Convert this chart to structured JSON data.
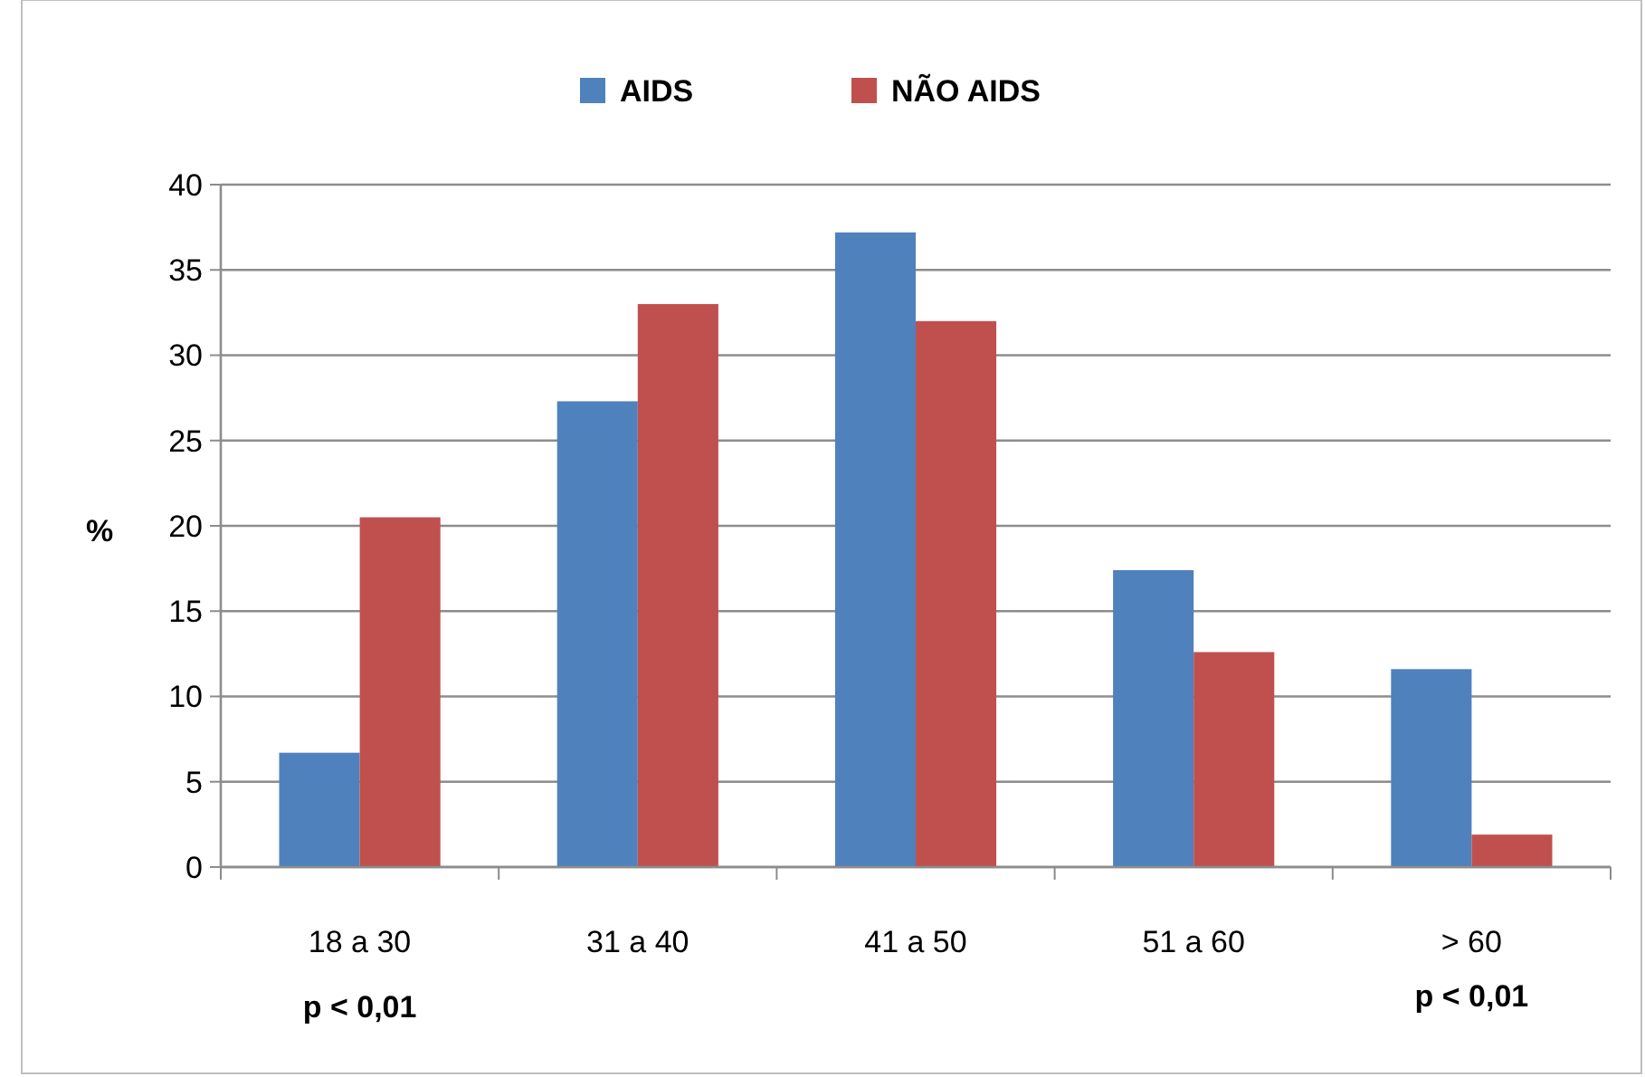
{
  "chart_data": {
    "type": "bar",
    "ylabel": "%",
    "categories": [
      "18 a 30",
      "31 a 40",
      "41 a 50",
      "51 a 60",
      "> 60"
    ],
    "series": [
      {
        "name": "AIDS",
        "color": "#4f81bd",
        "values": [
          6.7,
          27.3,
          37.2,
          17.4,
          11.6
        ]
      },
      {
        "name": "NÃO AIDS",
        "color": "#c0504d",
        "values": [
          20.5,
          33.0,
          32.0,
          12.6,
          1.9
        ]
      }
    ],
    "ylim": [
      0,
      40
    ],
    "yticks": [
      0,
      5,
      10,
      15,
      20,
      25,
      30,
      35,
      40
    ],
    "grid": "y",
    "legend": "top",
    "annotations": [
      "p < 0,01",
      "p < 0,01"
    ]
  }
}
